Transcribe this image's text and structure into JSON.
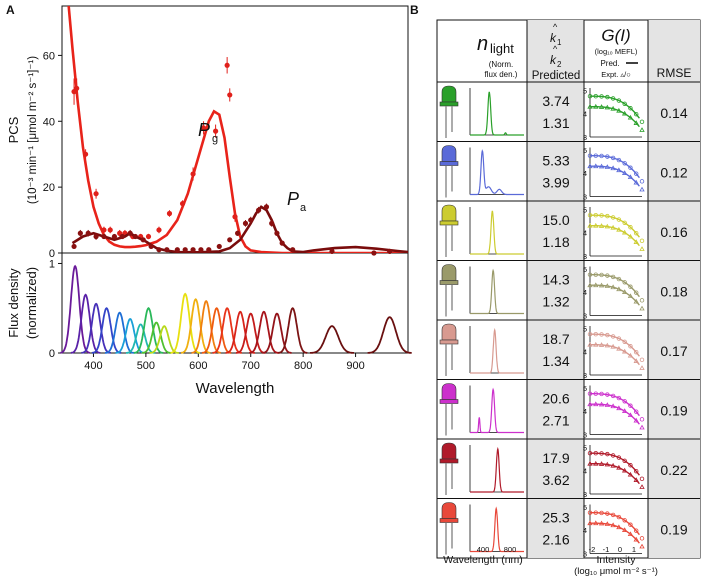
{
  "panel_labels": {
    "a": "A",
    "b": "B"
  },
  "colors": {
    "pcs_fit": "#e8231a",
    "pcs_points": "#e0201b",
    "pa_fit": "#7a0c0c",
    "pa_points": "#8a1010",
    "spectra": [
      "#6a1a9a",
      "#5a22a8",
      "#4630b8",
      "#3444c8",
      "#1f6fd6",
      "#1aa0d8",
      "#22b8b0",
      "#2ab85a",
      "#50c030",
      "#b8d81a",
      "#e8e010",
      "#f0b010",
      "#f08010",
      "#ef5a10",
      "#e8341a",
      "#d8241a",
      "#c41c1c",
      "#a8141a",
      "#94141a",
      "#7c1414",
      "#6a1010"
    ],
    "leds": [
      "#2aa02a",
      "#5a6ad8",
      "#cccc30",
      "#9a9a6a",
      "#d89a90",
      "#cc30cc",
      "#b01a2a",
      "#e8483a"
    ]
  },
  "chart_data": [
    {
      "type": "line",
      "panel": "A-top",
      "ylabel": "PCS",
      "ylabel_units": "(10⁻³ min⁻¹ [μmol m⁻² s⁻¹]⁻¹)",
      "xlim": [
        340,
        1000
      ],
      "ylim": [
        0,
        75
      ],
      "yticks": [
        0,
        20,
        40,
        60
      ],
      "annotations": [
        {
          "text": "P",
          "sub": "g"
        },
        {
          "text": "P",
          "sub": "a"
        }
      ],
      "series": [
        {
          "key": "pg",
          "style": "fit+points",
          "fit": [
            [
              340,
              95
            ],
            [
              350,
              80
            ],
            [
              360,
              62
            ],
            [
              370,
              46
            ],
            [
              380,
              32
            ],
            [
              390,
              22
            ],
            [
              400,
              14
            ],
            [
              410,
              9
            ],
            [
              420,
              5.5
            ],
            [
              430,
              3.5
            ],
            [
              440,
              2.5
            ],
            [
              450,
              2
            ],
            [
              460,
              1.8
            ],
            [
              470,
              1.8
            ],
            [
              480,
              1.9
            ],
            [
              490,
              2.1
            ],
            [
              500,
              2.4
            ],
            [
              520,
              3.4
            ],
            [
              540,
              5.5
            ],
            [
              560,
              10
            ],
            [
              580,
              18
            ],
            [
              600,
              29
            ],
            [
              620,
              40
            ],
            [
              630,
              43
            ],
            [
              640,
              42
            ],
            [
              650,
              35
            ],
            [
              660,
              23
            ],
            [
              670,
              12
            ],
            [
              680,
              5
            ],
            [
              690,
              2
            ],
            [
              700,
              0.8
            ],
            [
              720,
              0.3
            ],
            [
              760,
              0
            ],
            [
              1000,
              0
            ]
          ],
          "points": [
            [
              363,
              49
            ],
            [
              368,
              50
            ],
            [
              385,
              30
            ],
            [
              405,
              18
            ],
            [
              420,
              7
            ],
            [
              432,
              7
            ],
            [
              450,
              6
            ],
            [
              460,
              6
            ],
            [
              475,
              5
            ],
            [
              490,
              5
            ],
            [
              505,
              5
            ],
            [
              525,
              7
            ],
            [
              545,
              12
            ],
            [
              570,
              15
            ],
            [
              590,
              24
            ],
            [
              610,
              38
            ],
            [
              633,
              37
            ],
            [
              655,
              57
            ],
            [
              660,
              48
            ],
            [
              670,
              11
            ]
          ],
          "errors": [
            4,
            3,
            1.5,
            1.5,
            1,
            1,
            1,
            1,
            0.8,
            0.8,
            0.8,
            1,
            1,
            1,
            2,
            2,
            2,
            2.5,
            2,
            1.5
          ]
        },
        {
          "key": "pa",
          "style": "fit+points",
          "fit": [
            [
              360,
              3
            ],
            [
              380,
              5
            ],
            [
              400,
              6
            ],
            [
              420,
              5
            ],
            [
              440,
              4
            ],
            [
              460,
              5
            ],
            [
              470,
              6
            ],
            [
              480,
              5
            ],
            [
              500,
              3.5
            ],
            [
              520,
              1.5
            ],
            [
              540,
              0.7
            ],
            [
              560,
              0.3
            ],
            [
              600,
              0.2
            ],
            [
              640,
              0.5
            ],
            [
              660,
              1.5
            ],
            [
              680,
              4
            ],
            [
              700,
              9
            ],
            [
              710,
              12
            ],
            [
              720,
              14
            ],
            [
              730,
              13
            ],
            [
              740,
              10
            ],
            [
              750,
              6
            ],
            [
              760,
              3
            ],
            [
              770,
              1.5
            ],
            [
              780,
              0.5
            ],
            [
              800,
              0.3
            ],
            [
              820,
              0.8
            ],
            [
              860,
              1.5
            ],
            [
              900,
              1.8
            ],
            [
              940,
              1.3
            ],
            [
              980,
              0.6
            ],
            [
              1000,
              0.3
            ]
          ],
          "points": [
            [
              363,
              2
            ],
            [
              375,
              6
            ],
            [
              390,
              6
            ],
            [
              405,
              5
            ],
            [
              420,
              5
            ],
            [
              440,
              5
            ],
            [
              455,
              5
            ],
            [
              470,
              6
            ],
            [
              480,
              5
            ],
            [
              495,
              4
            ],
            [
              510,
              2
            ],
            [
              525,
              1
            ],
            [
              540,
              1
            ],
            [
              560,
              1
            ],
            [
              575,
              1
            ],
            [
              590,
              1
            ],
            [
              605,
              1
            ],
            [
              620,
              1
            ],
            [
              640,
              2
            ],
            [
              660,
              4
            ],
            [
              675,
              6
            ],
            [
              690,
              9
            ],
            [
              700,
              10
            ],
            [
              715,
              13
            ],
            [
              730,
              14
            ],
            [
              740,
              9
            ],
            [
              750,
              6
            ],
            [
              760,
              3
            ],
            [
              780,
              1
            ],
            [
              855,
              0.5
            ],
            [
              935,
              0
            ],
            [
              965,
              0.5
            ]
          ],
          "errors": [
            0.5,
            1,
            1,
            1,
            0.6,
            0.6,
            0.6,
            1,
            0.6,
            0.5,
            0.5,
            0.5,
            0.5,
            0.5,
            0.5,
            0.5,
            0.5,
            0.5,
            0.5,
            0.5,
            0.8,
            1,
            1,
            1,
            1,
            1,
            0.8,
            0.6,
            0.5,
            0.3,
            0.3,
            0.3
          ]
        }
      ]
    },
    {
      "type": "line",
      "panel": "A-bottom",
      "xlabel": "Wavelength",
      "ylabel": "Flux density",
      "ylabel_units": "(normalized)",
      "xlim": [
        340,
        1000
      ],
      "ylim": [
        0,
        1.05
      ],
      "yticks": [
        0,
        1
      ],
      "xticks": [
        400,
        500,
        600,
        700,
        800,
        900
      ],
      "peaks": [
        365,
        385,
        405,
        425,
        450,
        470,
        490,
        505,
        520,
        535,
        575,
        595,
        615,
        635,
        655,
        680,
        700,
        725,
        750,
        780,
        855,
        965
      ],
      "peak_heights": [
        0.97,
        0.65,
        0.55,
        0.5,
        0.45,
        0.38,
        0.32,
        0.5,
        0.34,
        0.3,
        0.66,
        0.6,
        0.58,
        0.5,
        0.5,
        0.46,
        0.44,
        0.46,
        0.44,
        0.5,
        0.3,
        0.4
      ]
    }
  ],
  "table": {
    "headers": {
      "n_light_main": "n",
      "n_light_sub": "light",
      "n_light_note1": "(Norm.",
      "n_light_note2": "flux den.)",
      "k1": "k",
      "k1_sub": "1",
      "k2": "k",
      "k2_sub": "2",
      "predicted": "Predicted",
      "g_main": "G(I)",
      "g_note": "(log₁₀ MEFL)",
      "pred_label": "Pred.",
      "expt_label": "Expt. ▵/○",
      "rmse": "RMSE"
    },
    "rows": [
      {
        "k1": "3.74",
        "k2": "1.31",
        "rmse": "0.14",
        "peak": 550
      },
      {
        "k1": "5.33",
        "k2": "3.99",
        "rmse": "0.12",
        "peak": 460
      },
      {
        "k1": "15.0",
        "k2": "1.18",
        "rmse": "0.16",
        "peak": 590
      },
      {
        "k1": "14.3",
        "k2": "1.32",
        "rmse": "0.18",
        "peak": 600
      },
      {
        "k1": "18.7",
        "k2": "1.34",
        "rmse": "0.17",
        "peak": 620
      },
      {
        "k1": "20.6",
        "k2": "2.71",
        "rmse": "0.19",
        "peak": 600
      },
      {
        "k1": "17.9",
        "k2": "3.62",
        "rmse": "0.22",
        "peak": 660
      },
      {
        "k1": "25.3",
        "k2": "2.16",
        "rmse": "0.19",
        "peak": 640
      }
    ],
    "spectrum_xticks": [
      "400",
      "800"
    ],
    "g_xticks": [
      "-2",
      "-1",
      "0",
      "1"
    ],
    "g_yticks": [
      "3",
      "4",
      "5"
    ],
    "xlabel_spectrum": "Wavelength (nm)",
    "xlabel_g": "Intensity",
    "xlabel_g_units": "(log₁₀ μmol m⁻² s⁻¹)"
  }
}
